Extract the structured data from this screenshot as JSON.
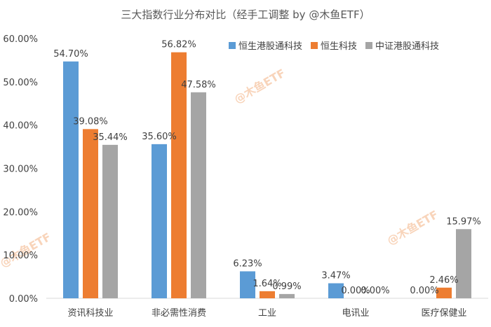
{
  "chart_data": {
    "type": "bar",
    "title": "三大指数行业分布对比（经手工调整 by @木鱼ETF）",
    "categories": [
      "资讯科技业",
      "非必需性消费",
      "工业",
      "电讯业",
      "医疗保健业"
    ],
    "series": [
      {
        "name": "恒生港股通科技",
        "color": "#5b9bd5",
        "values": [
          54.7,
          35.6,
          6.23,
          3.47,
          0.0
        ],
        "labels": [
          "54.70%",
          "35.60%",
          "6.23%",
          "3.47%",
          "0.00%"
        ]
      },
      {
        "name": "恒生科技",
        "color": "#ed7d31",
        "values": [
          39.08,
          56.82,
          1.64,
          0.0,
          2.46
        ],
        "labels": [
          "39.08%",
          "56.82%",
          "1.64%",
          "0.00%",
          "2.46%"
        ]
      },
      {
        "name": "中证港股通科技",
        "color": "#a5a5a5",
        "values": [
          35.44,
          47.58,
          0.99,
          0.0,
          15.97
        ],
        "labels": [
          "35.44%",
          "47.58%",
          "0.99%",
          "0.00%",
          "15.97%"
        ]
      }
    ],
    "ylim": [
      0,
      60
    ],
    "yticks": [
      0,
      10,
      20,
      30,
      40,
      50,
      60
    ],
    "ytick_labels": [
      "0.00%",
      "10.00%",
      "20.00%",
      "30.00%",
      "40.00%",
      "50.00%",
      "60.00%"
    ],
    "grid": false,
    "legend_position": "top-right"
  },
  "watermark": "@木鱼ETF",
  "colors": {
    "text": "#404040",
    "axis": "#d9d9d9",
    "watermark": "#f4b183"
  }
}
